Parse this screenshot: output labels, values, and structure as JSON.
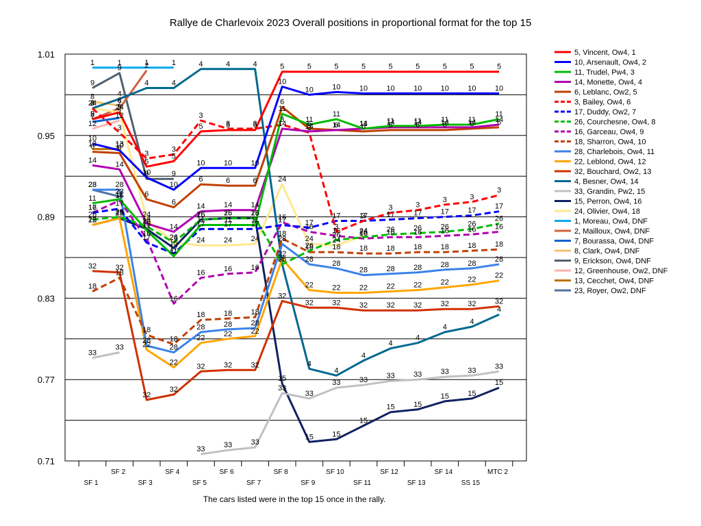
{
  "chart_data": {
    "type": "line",
    "title": "Rallye de Charlevoix 2023  Overall positions in proportional format for the top 15",
    "footnote": "The cars listed were in the top 15 once in the rally.",
    "xlabel": "",
    "ylabel": "",
    "categories": [
      "SF 1",
      "SF 2",
      "SF 3",
      "SF 4",
      "SF 5",
      "SF 6",
      "SF 7",
      "SF 8",
      "SF 9",
      "SF 10",
      "SF 11",
      "SF 12",
      "SF 13",
      "SF 14",
      "SS 15",
      "MTC 2"
    ],
    "yticks": [
      "1.01",
      "0.95",
      "0.89",
      "0.83",
      "0.77",
      "0.71"
    ],
    "ylim": [
      0.71,
      1.01
    ],
    "grid": true,
    "legend_position": "right",
    "series": [
      {
        "name": "5, Vincent, Ow4, 1",
        "label": "5",
        "color": "#ff0000",
        "dash": false,
        "values": [
          0.962,
          0.967,
          0.927,
          0.931,
          0.953,
          0.954,
          0.954,
          0.997,
          0.997,
          0.997,
          0.997,
          0.997,
          0.997,
          0.997,
          0.997,
          0.997
        ]
      },
      {
        "name": "10, Arsenault, Ow4, 2",
        "label": "10",
        "color": "#0000ff",
        "dash": false,
        "values": [
          0.944,
          0.939,
          0.919,
          0.91,
          0.926,
          0.926,
          0.926,
          0.986,
          0.98,
          0.982,
          0.981,
          0.981,
          0.981,
          0.981,
          0.981,
          0.981
        ]
      },
      {
        "name": "11, Trudel, Pw4, 3",
        "label": "11",
        "color": "#00bb00",
        "dash": false,
        "values": [
          0.9,
          0.903,
          0.88,
          0.861,
          0.884,
          0.884,
          0.884,
          0.966,
          0.958,
          0.962,
          0.955,
          0.957,
          0.957,
          0.958,
          0.958,
          0.962
        ]
      },
      {
        "name": "14, Monette, Ow4, 4",
        "label": "14",
        "color": "#b000b0",
        "dash": false,
        "values": [
          0.928,
          0.925,
          0.885,
          0.879,
          0.894,
          0.895,
          0.895,
          0.955,
          0.953,
          0.954,
          0.955,
          0.956,
          0.956,
          0.956,
          0.956,
          0.958
        ]
      },
      {
        "name": "6, Leblanc, Ow2, 5",
        "label": "6",
        "color": "#c04000",
        "dash": false,
        "values": [
          0.938,
          0.937,
          0.903,
          0.897,
          0.914,
          0.913,
          0.913,
          0.971,
          0.955,
          0.954,
          0.953,
          0.954,
          0.954,
          0.954,
          0.955,
          0.956
        ]
      },
      {
        "name": "3, Bailey, Ow4, 6",
        "label": "3",
        "color": "#ff0000",
        "dash": true,
        "values": [
          0.97,
          0.952,
          0.933,
          0.936,
          0.961,
          0.955,
          0.955,
          0.958,
          0.952,
          0.879,
          0.887,
          0.893,
          0.895,
          0.899,
          0.901,
          0.906
        ]
      },
      {
        "name": "17, Duddy, Ow2, 7",
        "label": "17",
        "color": "#0000ff",
        "dash": true,
        "values": [
          0.893,
          0.896,
          0.871,
          0.863,
          0.881,
          0.881,
          0.881,
          0.884,
          0.882,
          0.887,
          0.887,
          0.888,
          0.889,
          0.89,
          0.891,
          0.894
        ]
      },
      {
        "name": "26, Courchesne, Ow4, 8",
        "label": "26",
        "color": "#00bb00",
        "dash": true,
        "values": [
          0.888,
          0.89,
          0.883,
          0.871,
          0.888,
          0.889,
          0.889,
          0.855,
          0.865,
          0.873,
          0.875,
          0.877,
          0.878,
          0.879,
          0.881,
          0.885
        ]
      },
      {
        "name": "16, Garceau, Ow4, 9",
        "label": "16",
        "color": "#b000b0",
        "dash": true,
        "values": [
          0.893,
          0.902,
          0.874,
          0.826,
          0.845,
          0.848,
          0.849,
          0.886,
          0.879,
          0.876,
          0.874,
          0.875,
          0.875,
          0.876,
          0.877,
          0.879
        ]
      },
      {
        "name": "18, Sharron, Ow4, 10",
        "label": "18",
        "color": "#c04000",
        "dash": true,
        "values": [
          0.835,
          0.845,
          0.803,
          0.796,
          0.814,
          0.815,
          0.816,
          0.874,
          0.864,
          0.864,
          0.863,
          0.863,
          0.864,
          0.864,
          0.865,
          0.866
        ]
      },
      {
        "name": "28, Charlebois, Ow4, 11",
        "label": "28",
        "color": "#3b82e8",
        "dash": false,
        "values": [
          0.91,
          0.91,
          0.795,
          0.79,
          0.805,
          0.807,
          0.808,
          0.87,
          0.855,
          0.852,
          0.847,
          0.848,
          0.849,
          0.851,
          0.852,
          0.855
        ]
      },
      {
        "name": "22, Leblond, Ow4, 12",
        "label": "22",
        "color": "#ffa500",
        "dash": false,
        "values": [
          0.884,
          0.889,
          0.792,
          0.779,
          0.797,
          0.8,
          0.802,
          0.859,
          0.836,
          0.834,
          0.834,
          0.835,
          0.836,
          0.838,
          0.84,
          0.843
        ]
      },
      {
        "name": "32, Bouchard, Ow2, 13",
        "label": "32",
        "color": "#d03000",
        "dash": false,
        "values": [
          0.85,
          0.849,
          0.755,
          0.759,
          0.776,
          0.777,
          0.777,
          0.828,
          0.823,
          0.823,
          0.821,
          0.821,
          0.821,
          0.822,
          0.822,
          0.824
        ]
      },
      {
        "name": "4, Besner, Ow4, 14",
        "label": "4",
        "color": "#006890",
        "dash": false,
        "values": [
          0.97,
          0.977,
          0.985,
          0.985,
          0.999,
          0.999,
          0.999,
          0.855,
          0.778,
          0.773,
          0.784,
          0.793,
          0.797,
          0.805,
          0.809,
          0.818
        ]
      },
      {
        "name": "33, Grandin, Pw2, 15",
        "label": "33",
        "color": "#c0c0c0",
        "dash": false,
        "values": [
          0.786,
          0.79,
          null,
          null,
          0.715,
          0.718,
          0.72,
          0.76,
          0.756,
          0.764,
          0.766,
          0.769,
          0.77,
          0.772,
          0.773,
          0.776
        ]
      },
      {
        "name": "15, Perron, Ow4, 16",
        "label": "15",
        "color": "#102060",
        "dash": false,
        "values": [
          0.884,
          0.889,
          0.881,
          0.867,
          0.888,
          0.889,
          0.889,
          0.767,
          0.724,
          0.726,
          0.736,
          0.746,
          0.748,
          0.754,
          0.756,
          0.764
        ]
      },
      {
        "name": "24, Olivier, Ow4, 18",
        "label": "24",
        "color": "#ffe890",
        "dash": false,
        "values": [
          0.97,
          0.967,
          0.888,
          0.871,
          0.869,
          0.869,
          0.87,
          0.914,
          0.87,
          0.869,
          0.876,
          null,
          null,
          null,
          null,
          null
        ]
      },
      {
        "name": "1, Moreau, Ow4, DNF",
        "label": "1",
        "color": "#00aaee",
        "dash": false,
        "values": [
          1.0,
          1.0,
          1.0,
          1.0,
          null,
          null,
          null,
          null,
          null,
          null,
          null,
          null,
          null,
          null,
          null,
          null
        ]
      },
      {
        "name": "2, Mailloux, Ow4, DNF",
        "label": "2",
        "color": "#d06040",
        "dash": false,
        "values": [
          0.962,
          0.97,
          0.998,
          null,
          null,
          null,
          null,
          null,
          null,
          null,
          null,
          null,
          null,
          null,
          null,
          null
        ]
      },
      {
        "name": "7, Bourassa, Ow4, DNF",
        "label": "7",
        "color": "#1060d0",
        "dash": false,
        "values": [
          0.96,
          0.963,
          null,
          null,
          null,
          null,
          null,
          null,
          null,
          null,
          null,
          null,
          null,
          null,
          null,
          null
        ]
      },
      {
        "name": "8, Clark, Ow4, DNF",
        "label": "8",
        "color": "#f0c070",
        "dash": false,
        "values": [
          0.975,
          0.972,
          null,
          null,
          null,
          null,
          null,
          null,
          null,
          null,
          null,
          null,
          null,
          null,
          null,
          null
        ]
      },
      {
        "name": "9, Erickson, Ow4, DNF",
        "label": "9",
        "color": "#506070",
        "dash": false,
        "values": [
          0.985,
          0.996,
          0.918,
          0.918,
          null,
          null,
          null,
          null,
          null,
          null,
          null,
          null,
          null,
          null,
          null,
          null
        ]
      },
      {
        "name": "12, Greenhouse, Ow2, DNF",
        "label": "12",
        "color": "#ffb0b0",
        "dash": false,
        "values": [
          0.955,
          0.961,
          null,
          null,
          null,
          null,
          null,
          null,
          null,
          null,
          null,
          null,
          null,
          null,
          null,
          null
        ]
      },
      {
        "name": "13, Cecchet, Ow4, DNF",
        "label": "13",
        "color": "#c07000",
        "dash": false,
        "values": [
          0.94,
          0.94,
          null,
          null,
          null,
          null,
          null,
          null,
          null,
          null,
          null,
          null,
          null,
          null,
          null,
          null
        ]
      },
      {
        "name": "23, Royer, Ow2, DNF",
        "label": "23",
        "color": "#5070a0",
        "dash": false,
        "values": [
          0.91,
          0.905,
          null,
          null,
          null,
          null,
          null,
          null,
          null,
          null,
          null,
          null,
          null,
          null,
          null,
          null
        ]
      }
    ]
  }
}
